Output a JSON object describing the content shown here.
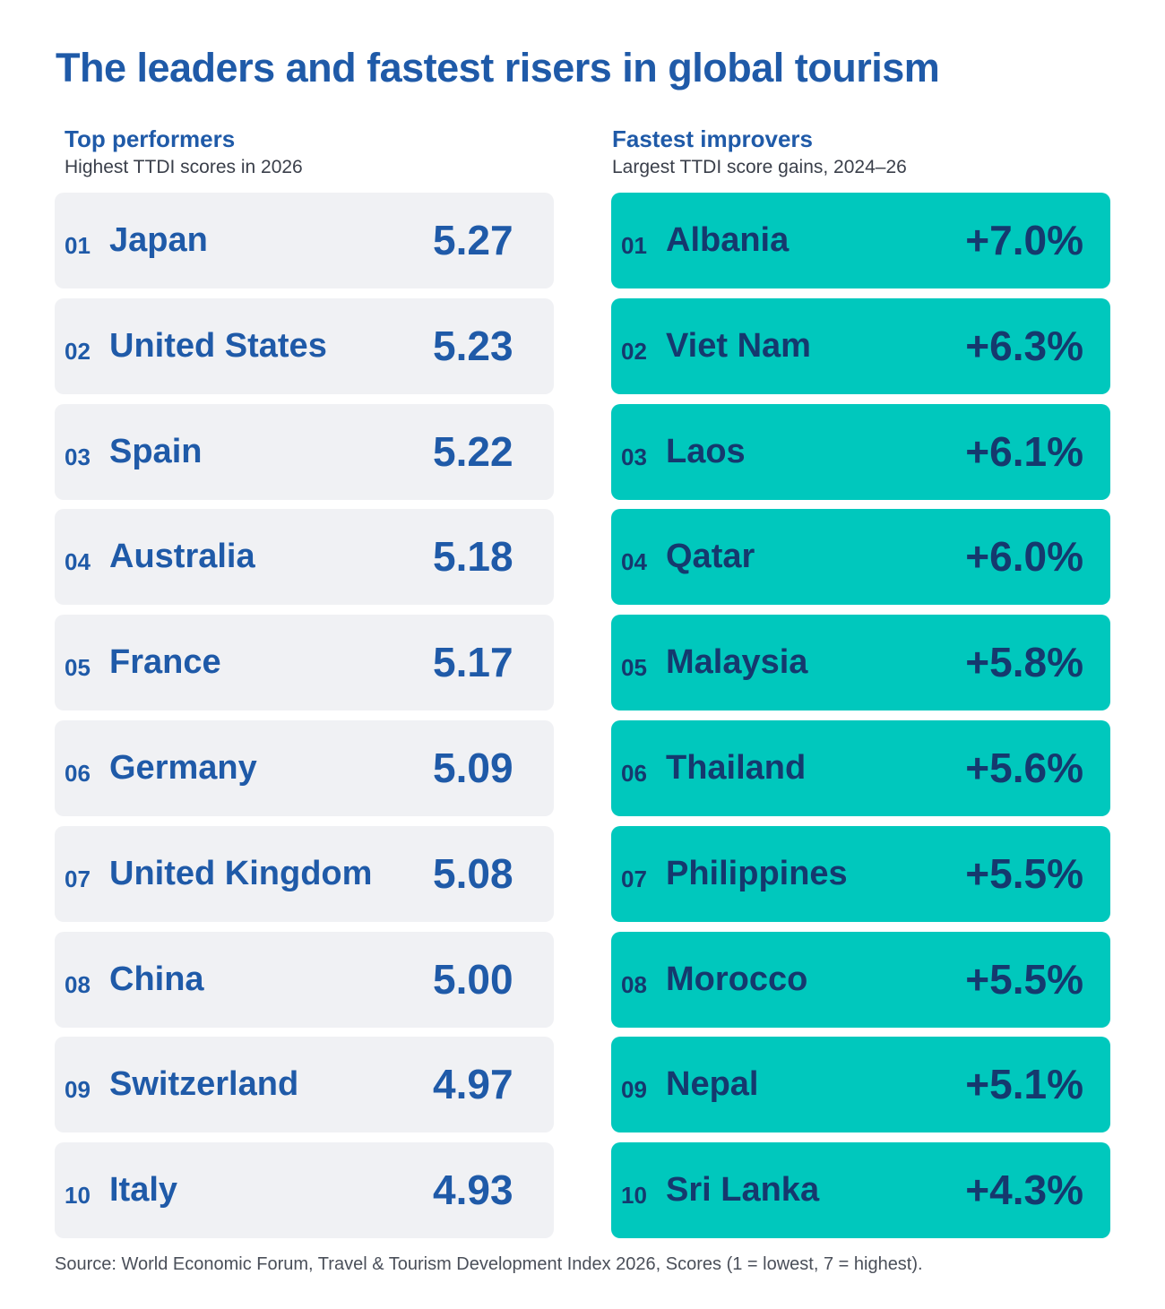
{
  "title": "The leaders and fastest risers in global tourism",
  "source": "Source: World Economic Forum, Travel & Tourism Development Index 2026, Scores (1 = lowest, 7 = highest).",
  "colors": {
    "title_blue": "#1f5aa8",
    "navy": "#15396e",
    "teal": "#00c8bd",
    "light_gray": "#f0f1f4"
  },
  "chart_data": [
    {
      "type": "table",
      "title": "Top performers",
      "subtitle": "Highest TTDI scores in 2026",
      "rows": [
        {
          "rank": "01",
          "country": "Japan",
          "value": "5.27"
        },
        {
          "rank": "02",
          "country": "United States",
          "value": "5.23"
        },
        {
          "rank": "03",
          "country": "Spain",
          "value": "5.22"
        },
        {
          "rank": "04",
          "country": "Australia",
          "value": "5.18"
        },
        {
          "rank": "05",
          "country": "France",
          "value": "5.17"
        },
        {
          "rank": "06",
          "country": "Germany",
          "value": "5.09"
        },
        {
          "rank": "07",
          "country": "United Kingdom",
          "value": "5.08"
        },
        {
          "rank": "08",
          "country": "China",
          "value": "5.00"
        },
        {
          "rank": "09",
          "country": "Switzerland",
          "value": "4.97"
        },
        {
          "rank": "10",
          "country": "Italy",
          "value": "4.93"
        }
      ]
    },
    {
      "type": "table",
      "title": "Fastest improvers",
      "subtitle": "Largest TTDI score gains, 2024–26",
      "rows": [
        {
          "rank": "01",
          "country": "Albania",
          "value": "+7.0%"
        },
        {
          "rank": "02",
          "country": "Viet Nam",
          "value": "+6.3%"
        },
        {
          "rank": "03",
          "country": "Laos",
          "value": "+6.1%"
        },
        {
          "rank": "04",
          "country": "Qatar",
          "value": "+6.0%"
        },
        {
          "rank": "05",
          "country": "Malaysia",
          "value": "+5.8%"
        },
        {
          "rank": "06",
          "country": "Thailand",
          "value": "+5.6%"
        },
        {
          "rank": "07",
          "country": "Philippines",
          "value": "+5.5%"
        },
        {
          "rank": "08",
          "country": "Morocco",
          "value": "+5.5%"
        },
        {
          "rank": "09",
          "country": "Nepal",
          "value": "+5.1%"
        },
        {
          "rank": "10",
          "country": "Sri Lanka",
          "value": "+4.3%"
        }
      ]
    }
  ]
}
